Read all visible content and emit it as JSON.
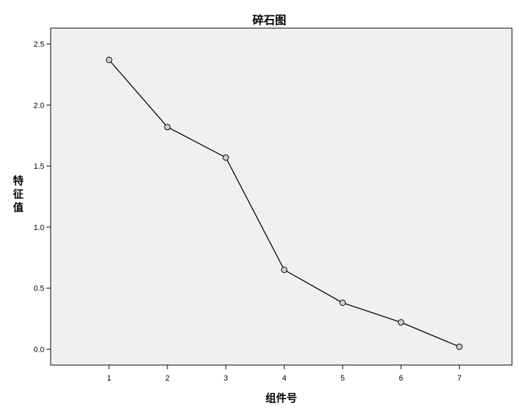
{
  "chart_data": {
    "type": "line",
    "title": "碎石图",
    "xlabel": "组件号",
    "ylabel": "特征值",
    "ylim": [
      -0.13,
      2.63
    ],
    "xlim": [
      0,
      7.9
    ],
    "x_ticks": [
      1,
      2,
      3,
      4,
      5,
      6,
      7
    ],
    "y_ticks": [
      "0.0",
      "0.5",
      "1.0",
      "1.5",
      "2.0",
      "2.5"
    ],
    "y_tick_values": [
      0.0,
      0.5,
      1.0,
      1.5,
      2.0,
      2.5
    ],
    "grid": false,
    "marker": "circle",
    "colors": {
      "plot_background": "#f0f0f0",
      "line": "#000000",
      "marker_fill": "#cfcfcf"
    },
    "series": [
      {
        "x": [
          1,
          2,
          3,
          4,
          5,
          6,
          7
        ],
        "values": [
          2.37,
          1.82,
          1.57,
          0.65,
          0.38,
          0.22,
          0.02
        ]
      }
    ]
  }
}
